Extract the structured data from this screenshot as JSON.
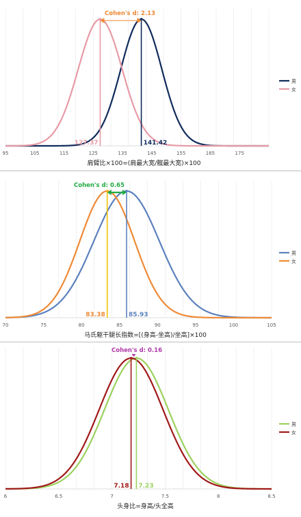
{
  "chart_data": [
    {
      "type": "line",
      "xlabel": "肩臂比×100=(肩最大宽/髋最大宽)×100",
      "xlim": [
        95,
        185
      ],
      "xticks": [
        95,
        105,
        115,
        125,
        135,
        145,
        155,
        165,
        175
      ],
      "annotation": "Cohen's d: 2.13",
      "series": [
        {
          "name": "男",
          "mean": 141.42,
          "mean_label": "141.42",
          "color": "#0f2b5b"
        },
        {
          "name": "女",
          "mean": 127.37,
          "mean_label": "127.37",
          "color": "#e79aa6"
        }
      ],
      "legend": "right",
      "grid": true
    },
    {
      "type": "line",
      "xlabel": "马氏躯干腿长指数=[(身高-坐高)/坐高]×100",
      "xlim": [
        70,
        105
      ],
      "xticks": [
        70,
        75,
        80,
        85,
        90,
        95,
        100,
        105
      ],
      "annotation": "Cohen's d: 0.65",
      "series": [
        {
          "name": "男",
          "mean": 85.93,
          "mean_label": "85.93",
          "color": "#5b80bd"
        },
        {
          "name": "女",
          "mean": 83.38,
          "mean_label": "83.38",
          "color": "#ee8a35"
        }
      ],
      "legend": "right",
      "grid": true
    },
    {
      "type": "line",
      "xlabel": "头身比=身高/头全高",
      "xlim": [
        6,
        8.5
      ],
      "xticks": [
        6,
        6.5,
        7,
        7.5,
        8,
        8.5
      ],
      "annotation": "Cohen's d: 0.16",
      "series": [
        {
          "name": "男",
          "mean": 7.23,
          "mean_label": "7.23",
          "color": "#9bd15e"
        },
        {
          "name": "女",
          "mean": 7.18,
          "mean_label": "7.18",
          "color": "#a01818"
        }
      ],
      "legend": "right",
      "grid": true
    }
  ]
}
